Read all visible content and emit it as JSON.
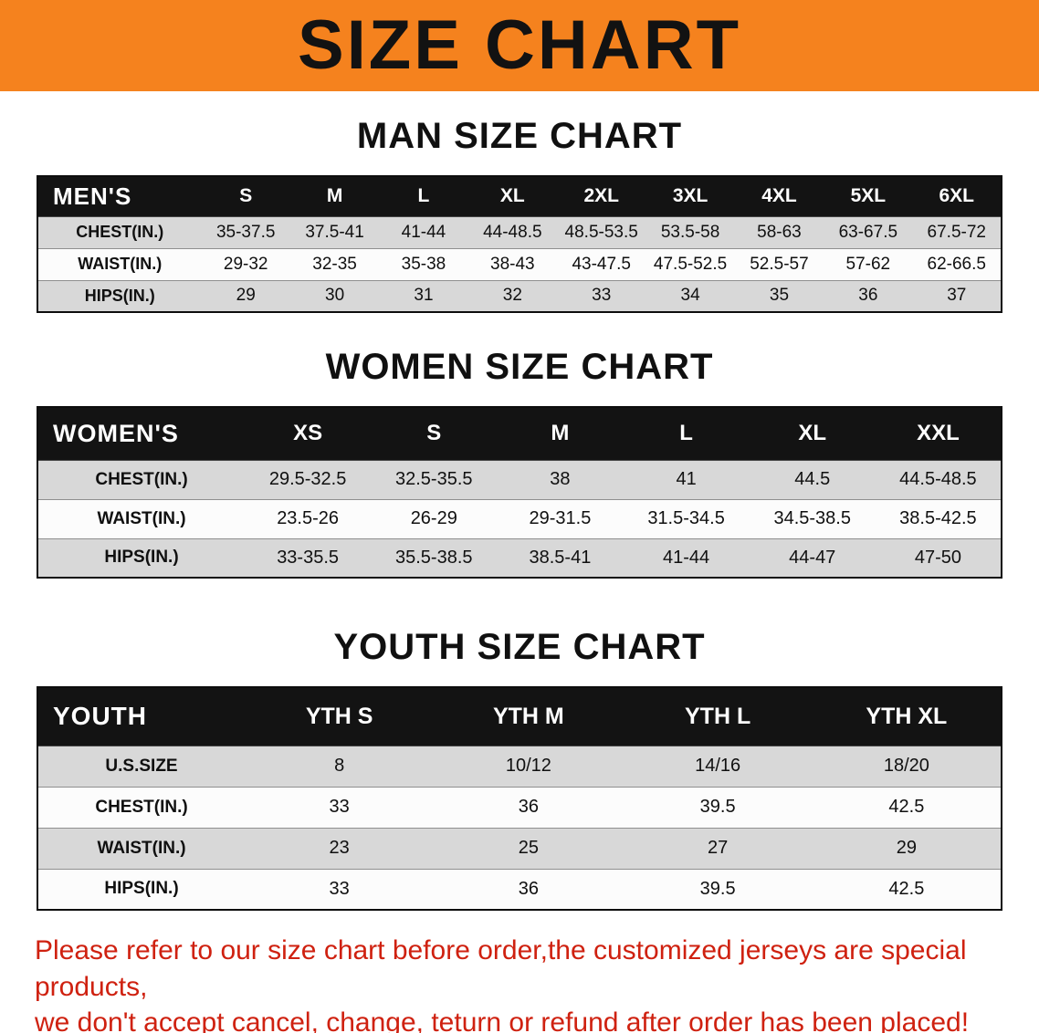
{
  "banner": {
    "title": "SIZE CHART"
  },
  "colors": {
    "banner_bg": "#f5821e",
    "table_header_bg": "#131313",
    "row_alt_bg": "#d8d8d8",
    "disclaimer_red": "#cf2110"
  },
  "man_chart": {
    "heading": "MAN SIZE CHART",
    "table": {
      "header": [
        "MEN'S",
        "S",
        "M",
        "L",
        "XL",
        "2XL",
        "3XL",
        "4XL",
        "5XL",
        "6XL"
      ],
      "rows": [
        {
          "label": "CHEST(IN.)",
          "values": [
            "35-37.5",
            "37.5-41",
            "41-44",
            "44-48.5",
            "48.5-53.5",
            "53.5-58",
            "58-63",
            "63-67.5",
            "67.5-72"
          ]
        },
        {
          "label": "WAIST(IN.)",
          "values": [
            "29-32",
            "32-35",
            "35-38",
            "38-43",
            "43-47.5",
            "47.5-52.5",
            "52.5-57",
            "57-62",
            "62-66.5"
          ]
        },
        {
          "label": "HIPS(IN.)",
          "values": [
            "29",
            "30",
            "31",
            "32",
            "33",
            "34",
            "35",
            "36",
            "37"
          ]
        }
      ]
    }
  },
  "women_chart": {
    "heading": "WOMEN SIZE CHART",
    "table": {
      "header": [
        "WOMEN'S",
        "XS",
        "S",
        "M",
        "L",
        "XL",
        "XXL"
      ],
      "rows": [
        {
          "label": "CHEST(IN.)",
          "values": [
            "29.5-32.5",
            "32.5-35.5",
            "38",
            "41",
            "44.5",
            "44.5-48.5"
          ]
        },
        {
          "label": "WAIST(IN.)",
          "values": [
            "23.5-26",
            "26-29",
            "29-31.5",
            "31.5-34.5",
            "34.5-38.5",
            "38.5-42.5"
          ]
        },
        {
          "label": "HIPS(IN.)",
          "values": [
            "33-35.5",
            "35.5-38.5",
            "38.5-41",
            "41-44",
            "44-47",
            "47-50"
          ]
        }
      ]
    }
  },
  "youth_chart": {
    "heading": "YOUTH SIZE CHART",
    "table": {
      "header": [
        "YOUTH",
        "YTH S",
        "YTH M",
        "YTH L",
        "YTH XL"
      ],
      "rows": [
        {
          "label": "U.S.SIZE",
          "values": [
            "8",
            "10/12",
            "14/16",
            "18/20"
          ]
        },
        {
          "label": "CHEST(IN.)",
          "values": [
            "33",
            "36",
            "39.5",
            "42.5"
          ]
        },
        {
          "label": "WAIST(IN.)",
          "values": [
            "23",
            "25",
            "27",
            "29"
          ]
        },
        {
          "label": "HIPS(IN.)",
          "values": [
            "33",
            "36",
            "39.5",
            "42.5"
          ]
        }
      ]
    }
  },
  "disclaimer": {
    "line1": "Please refer to our size chart before order,the customized jerseys are special products,",
    "line2": "we don't accept cancel, change, teturn or refund after order has been placed!"
  }
}
